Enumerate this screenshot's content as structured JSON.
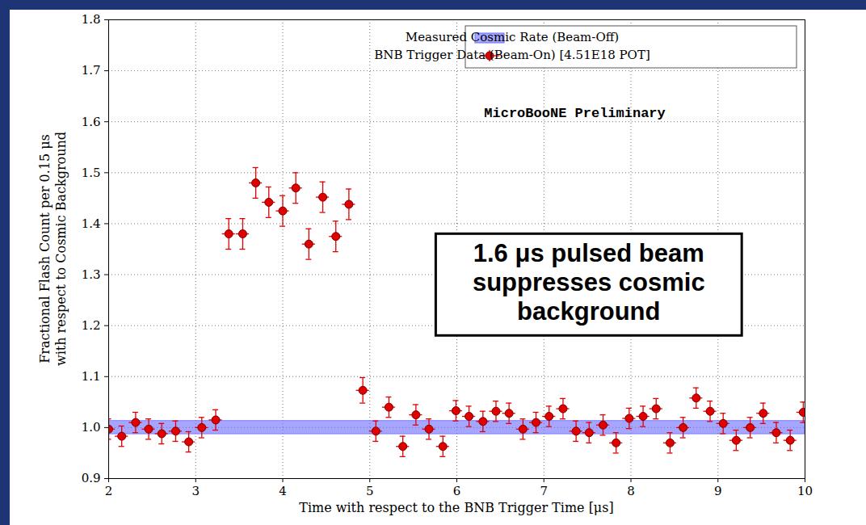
{
  "chart_data": {
    "type": "scatter",
    "xlabel": "Time with respect to the BNB Trigger Time [μs]",
    "ylabel": [
      "Fractional Flash Count per 0.15 μs",
      "with respect to Cosmic Background"
    ],
    "annotations": [
      "MicroBooNE Preliminary",
      "1.6 μs pulsed beam suppresses cosmic background"
    ],
    "x": [
      2.0,
      2.15,
      2.31,
      2.46,
      2.61,
      2.77,
      2.92,
      3.07,
      3.23,
      3.38,
      3.54,
      3.69,
      3.84,
      4.0,
      4.15,
      4.3,
      4.46,
      4.61,
      4.76,
      4.92,
      5.07,
      5.22,
      5.38,
      5.53,
      5.68,
      5.84,
      5.99,
      6.14,
      6.3,
      6.45,
      6.6,
      6.76,
      6.91,
      7.06,
      7.22,
      7.37,
      7.52,
      7.68,
      7.83,
      7.98,
      8.14,
      8.29,
      8.45,
      8.6,
      8.75,
      8.91,
      9.06,
      9.21,
      9.37,
      9.52,
      9.67,
      9.83,
      9.98
    ],
    "series": [
      {
        "name": "BNB Trigger Data (Beam-On) [4.51E18 POT]",
        "color": "#e00000",
        "marker": "o",
        "values": [
          0.997,
          0.983,
          1.01,
          0.997,
          0.988,
          0.993,
          0.972,
          1.0,
          1.015,
          1.38,
          1.38,
          1.48,
          1.442,
          1.425,
          1.47,
          1.36,
          1.452,
          1.375,
          1.438,
          1.073,
          0.993,
          1.04,
          0.963,
          1.025,
          0.997,
          0.963,
          1.033,
          1.022,
          1.012,
          1.032,
          1.028,
          0.997,
          1.01,
          1.022,
          1.037,
          0.993,
          0.99,
          1.005,
          0.97,
          1.018,
          1.022,
          1.037,
          0.97,
          1.0,
          1.058,
          1.032,
          1.008,
          0.975,
          1.0,
          1.028,
          0.99,
          0.975,
          1.03
        ],
        "yerr": [
          0.02,
          0.02,
          0.02,
          0.02,
          0.02,
          0.02,
          0.02,
          0.02,
          0.02,
          0.03,
          0.03,
          0.03,
          0.03,
          0.03,
          0.03,
          0.03,
          0.03,
          0.03,
          0.03,
          0.025,
          0.02,
          0.02,
          0.02,
          0.02,
          0.02,
          0.02,
          0.02,
          0.02,
          0.02,
          0.02,
          0.02,
          0.02,
          0.02,
          0.02,
          0.02,
          0.02,
          0.02,
          0.02,
          0.02,
          0.02,
          0.02,
          0.02,
          0.02,
          0.02,
          0.02,
          0.02,
          0.02,
          0.02,
          0.02,
          0.02,
          0.02,
          0.02,
          0.02
        ],
        "xerr": 0.075
      }
    ],
    "band": {
      "name": "Measured Cosmic Rate (Beam-Off)",
      "color": "#6b6bff",
      "low": 0.987,
      "high": 1.013
    },
    "xlim": [
      2,
      10
    ],
    "ylim": [
      0.9,
      1.8
    ],
    "xticks": [
      2,
      3,
      4,
      5,
      6,
      7,
      8,
      9,
      10
    ],
    "yticks": [
      0.9,
      {
        "value": 1,
        "label": "1.0"
      },
      1.1,
      1.2,
      1.3,
      1.4,
      1.5,
      1.6,
      1.7,
      1.8
    ],
    "grid": true,
    "legend": "upper right"
  }
}
